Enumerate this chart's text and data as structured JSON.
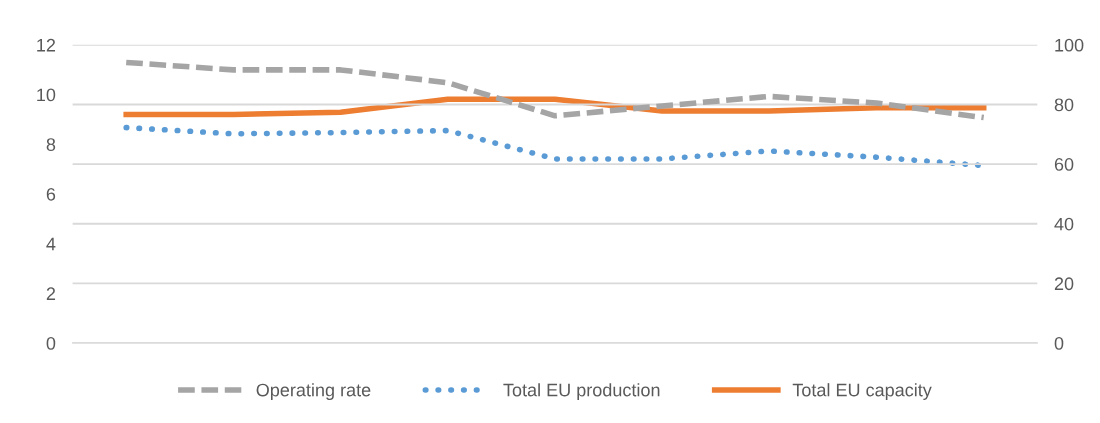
{
  "chart_data": {
    "type": "line",
    "categories": [
      null,
      null,
      null,
      null,
      null,
      null,
      null,
      null,
      null
    ],
    "series": [
      {
        "name": "Operating rate",
        "color": "#a5a5a5",
        "line_style": "dashed",
        "axis": "y2",
        "values": [
          94.1,
          91.6,
          91.6,
          87.3,
          76.2,
          79.5,
          82.7,
          80.5,
          75.6
        ]
      },
      {
        "name": "Total EU production",
        "color": "#5b9bd5",
        "line_style": "dotted",
        "values": [
          8.67,
          8.42,
          8.47,
          8.55,
          7.41,
          7.41,
          7.73,
          7.48,
          7.14
        ]
      },
      {
        "name": "Total EU capacity",
        "color": "#ed7d31",
        "line_style": "solid",
        "values": [
          9.2,
          9.2,
          9.29,
          9.81,
          9.81,
          9.34,
          9.34,
          9.47,
          9.47
        ]
      }
    ],
    "ylim": [
      0,
      12
    ],
    "yticks": [
      0,
      2,
      4,
      6,
      8,
      10,
      12
    ],
    "y2lim": [
      0,
      100
    ],
    "y2ticks": [
      0,
      20,
      40,
      60,
      80,
      100
    ],
    "grid": true,
    "legend": "bottom",
    "marker": "none"
  }
}
